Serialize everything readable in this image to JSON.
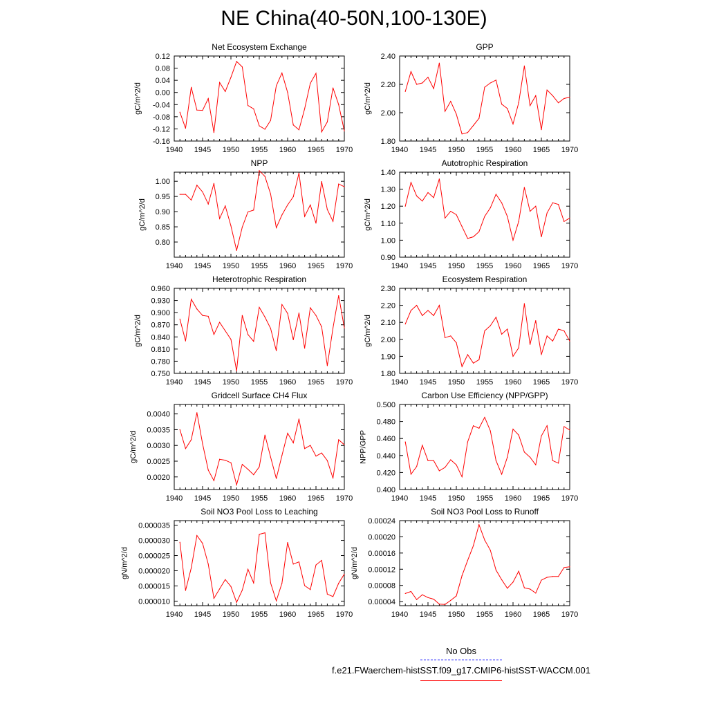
{
  "title": "NE China(40-50N,100-130E)",
  "legend": {
    "obs_label": "No Obs",
    "obs_color": "#0000ff",
    "model_label": "f.e21.FWaerchem-histSST.f09_g17.CMIP6-histSST-WACCM.001",
    "model_color": "#ff0000"
  },
  "chart_data": [
    {
      "type": "line",
      "title": "Net Ecosystem Exchange",
      "ylabel": "gC/m^2/d",
      "xlabel": "",
      "xlim": [
        1940,
        1970
      ],
      "ylim": [
        -0.16,
        0.12
      ],
      "xticks": [
        "1940",
        "1945",
        "1950",
        "1955",
        "1960",
        "1965",
        "1970"
      ],
      "yticks": [
        "-0.16",
        "-0.12",
        "-0.08",
        "-0.04",
        "0.00",
        "0.04",
        "0.08",
        "0.12"
      ],
      "x": [
        1941,
        1942,
        1943,
        1944,
        1945,
        1946,
        1947,
        1948,
        1949,
        1950,
        1951,
        1952,
        1953,
        1954,
        1955,
        1956,
        1957,
        1958,
        1959,
        1960,
        1961,
        1962,
        1963,
        1964,
        1965,
        1966,
        1967,
        1968,
        1969,
        1970
      ],
      "values": [
        -0.065,
        -0.118,
        0.017,
        -0.058,
        -0.059,
        -0.02,
        -0.132,
        0.033,
        0.003,
        0.05,
        0.102,
        0.084,
        -0.043,
        -0.054,
        -0.11,
        -0.121,
        -0.092,
        0.022,
        0.064,
        0.0,
        -0.107,
        -0.123,
        -0.054,
        0.03,
        0.063,
        -0.13,
        -0.097,
        0.015,
        -0.04,
        -0.127
      ]
    },
    {
      "type": "line",
      "title": "GPP",
      "ylabel": "gC/m^2/d",
      "xlabel": "",
      "xlim": [
        1940,
        1970
      ],
      "ylim": [
        1.8,
        2.4
      ],
      "xticks": [
        "1940",
        "1945",
        "1950",
        "1955",
        "1960",
        "1965",
        "1970"
      ],
      "yticks": [
        "1.80",
        "2.00",
        "2.20",
        "2.40"
      ],
      "x": [
        1941,
        1942,
        1943,
        1944,
        1945,
        1946,
        1947,
        1948,
        1949,
        1950,
        1951,
        1952,
        1953,
        1954,
        1955,
        1956,
        1957,
        1958,
        1959,
        1960,
        1961,
        1962,
        1963,
        1964,
        1965,
        1966,
        1967,
        1968,
        1969,
        1970
      ],
      "values": [
        2.15,
        2.29,
        2.2,
        2.21,
        2.25,
        2.17,
        2.35,
        2.01,
        2.08,
        1.99,
        1.85,
        1.86,
        1.91,
        1.96,
        2.18,
        2.21,
        2.23,
        2.06,
        2.03,
        1.92,
        2.07,
        2.33,
        2.05,
        2.12,
        1.88,
        2.16,
        2.12,
        2.07,
        2.1,
        2.11
      ]
    },
    {
      "type": "line",
      "title": "NPP",
      "ylabel": "gC/m^2/d",
      "xlabel": "",
      "xlim": [
        1940,
        1970
      ],
      "ylim": [
        0.75,
        1.03
      ],
      "xticks": [
        "1940",
        "1945",
        "1950",
        "1955",
        "1960",
        "1965",
        "1970"
      ],
      "yticks": [
        "0.80",
        "0.85",
        "0.90",
        "0.95",
        "1.00"
      ],
      "x": [
        1941,
        1942,
        1943,
        1944,
        1945,
        1946,
        1947,
        1948,
        1949,
        1950,
        1951,
        1952,
        1953,
        1954,
        1955,
        1956,
        1957,
        1958,
        1959,
        1960,
        1961,
        1962,
        1963,
        1964,
        1965,
        1966,
        1967,
        1968,
        1969,
        1970
      ],
      "values": [
        0.957,
        0.957,
        0.938,
        0.987,
        0.965,
        0.925,
        0.993,
        0.877,
        0.919,
        0.853,
        0.772,
        0.849,
        0.899,
        0.905,
        1.035,
        1.016,
        0.958,
        0.847,
        0.889,
        0.922,
        0.949,
        1.027,
        0.884,
        0.922,
        0.862,
        0.999,
        0.907,
        0.868,
        0.991,
        0.982
      ]
    },
    {
      "type": "line",
      "title": "Autotrophic Respiration",
      "ylabel": "gC/m^2/d",
      "xlabel": "",
      "xlim": [
        1940,
        1970
      ],
      "ylim": [
        0.9,
        1.4
      ],
      "xticks": [
        "1940",
        "1945",
        "1950",
        "1955",
        "1960",
        "1965",
        "1970"
      ],
      "yticks": [
        "0.90",
        "1.00",
        "1.10",
        "1.20",
        "1.30",
        "1.40"
      ],
      "x": [
        1941,
        1942,
        1943,
        1944,
        1945,
        1946,
        1947,
        1948,
        1949,
        1950,
        1951,
        1952,
        1953,
        1954,
        1955,
        1956,
        1957,
        1958,
        1959,
        1960,
        1961,
        1962,
        1963,
        1964,
        1965,
        1966,
        1967,
        1968,
        1969,
        1970
      ],
      "values": [
        1.2,
        1.34,
        1.26,
        1.23,
        1.28,
        1.25,
        1.36,
        1.13,
        1.17,
        1.15,
        1.08,
        1.01,
        1.02,
        1.05,
        1.14,
        1.19,
        1.27,
        1.22,
        1.14,
        1.0,
        1.11,
        1.31,
        1.17,
        1.2,
        1.02,
        1.16,
        1.22,
        1.21,
        1.11,
        1.13
      ]
    },
    {
      "type": "line",
      "title": "Heterotrophic Respiration",
      "ylabel": "gC/m^2/d",
      "xlabel": "",
      "xlim": [
        1940,
        1970
      ],
      "ylim": [
        0.75,
        0.96
      ],
      "xticks": [
        "1940",
        "1945",
        "1950",
        "1955",
        "1960",
        "1965",
        "1970"
      ],
      "yticks": [
        "0.750",
        "0.780",
        "0.810",
        "0.840",
        "0.870",
        "0.900",
        "0.930",
        "0.960"
      ],
      "x": [
        1941,
        1942,
        1943,
        1944,
        1945,
        1946,
        1947,
        1948,
        1949,
        1950,
        1951,
        1952,
        1953,
        1954,
        1955,
        1956,
        1957,
        1958,
        1959,
        1960,
        1961,
        1962,
        1963,
        1964,
        1965,
        1966,
        1967,
        1968,
        1969,
        1970
      ],
      "values": [
        0.884,
        0.83,
        0.933,
        0.909,
        0.893,
        0.891,
        0.846,
        0.876,
        0.855,
        0.834,
        0.756,
        0.893,
        0.846,
        0.829,
        0.913,
        0.889,
        0.861,
        0.806,
        0.92,
        0.898,
        0.833,
        0.899,
        0.812,
        0.912,
        0.893,
        0.865,
        0.769,
        0.862,
        0.942,
        0.862
      ]
    },
    {
      "type": "line",
      "title": "Ecosystem Respiration",
      "ylabel": "gC/m^2/d",
      "xlabel": "",
      "xlim": [
        1940,
        1970
      ],
      "ylim": [
        1.8,
        2.3
      ],
      "xticks": [
        "1940",
        "1945",
        "1950",
        "1955",
        "1960",
        "1965",
        "1970"
      ],
      "yticks": [
        "1.80",
        "1.90",
        "2.00",
        "2.10",
        "2.20",
        "2.30"
      ],
      "x": [
        1941,
        1942,
        1943,
        1944,
        1945,
        1946,
        1947,
        1948,
        1949,
        1950,
        1951,
        1952,
        1953,
        1954,
        1955,
        1956,
        1957,
        1958,
        1959,
        1960,
        1961,
        1962,
        1963,
        1964,
        1965,
        1966,
        1967,
        1968,
        1969,
        1970
      ],
      "values": [
        2.09,
        2.17,
        2.2,
        2.14,
        2.17,
        2.14,
        2.2,
        2.01,
        2.02,
        1.98,
        1.84,
        1.91,
        1.86,
        1.88,
        2.05,
        2.08,
        2.13,
        2.03,
        2.06,
        1.9,
        1.95,
        2.21,
        1.97,
        2.11,
        1.91,
        2.02,
        1.99,
        2.06,
        2.05,
        1.99
      ]
    },
    {
      "type": "line",
      "title": "Gridcell Surface CH4 Flux",
      "ylabel": "gC/m^2/d",
      "xlabel": "",
      "xlim": [
        1940,
        1970
      ],
      "ylim": [
        0.0016,
        0.0043
      ],
      "xticks": [
        "1940",
        "1945",
        "1950",
        "1955",
        "1960",
        "1965",
        "1970"
      ],
      "yticks": [
        "0.0020",
        "0.0025",
        "0.0030",
        "0.0035",
        "0.0040"
      ],
      "x": [
        1941,
        1942,
        1943,
        1944,
        1945,
        1946,
        1947,
        1948,
        1949,
        1950,
        1951,
        1952,
        1953,
        1954,
        1955,
        1956,
        1957,
        1958,
        1959,
        1960,
        1961,
        1962,
        1963,
        1964,
        1965,
        1966,
        1967,
        1968,
        1969,
        1970
      ],
      "values": [
        0.0035,
        0.0029,
        0.00318,
        0.00404,
        0.00305,
        0.00222,
        0.00188,
        0.00256,
        0.00253,
        0.00245,
        0.00175,
        0.0024,
        0.00224,
        0.00207,
        0.00232,
        0.00333,
        0.00263,
        0.00195,
        0.00268,
        0.00339,
        0.00308,
        0.00384,
        0.0029,
        0.003,
        0.00266,
        0.00276,
        0.00252,
        0.00196,
        0.00318,
        0.00302
      ]
    },
    {
      "type": "line",
      "title": "Carbon Use Efficiency (NPP/GPP)",
      "ylabel": "NPP/GPP",
      "xlabel": "",
      "xlim": [
        1940,
        1970
      ],
      "ylim": [
        0.4,
        0.5
      ],
      "xticks": [
        "1940",
        "1945",
        "1950",
        "1955",
        "1960",
        "1965",
        "1970"
      ],
      "yticks": [
        "0.400",
        "0.420",
        "0.440",
        "0.460",
        "0.480",
        "0.500"
      ],
      "x": [
        1941,
        1942,
        1943,
        1944,
        1945,
        1946,
        1947,
        1948,
        1949,
        1950,
        1951,
        1952,
        1953,
        1954,
        1955,
        1956,
        1957,
        1958,
        1959,
        1960,
        1961,
        1962,
        1963,
        1964,
        1965,
        1966,
        1967,
        1968,
        1969,
        1970
      ],
      "values": [
        0.456,
        0.418,
        0.427,
        0.452,
        0.434,
        0.434,
        0.422,
        0.426,
        0.435,
        0.429,
        0.415,
        0.456,
        0.475,
        0.472,
        0.485,
        0.469,
        0.434,
        0.418,
        0.438,
        0.471,
        0.464,
        0.444,
        0.438,
        0.429,
        0.463,
        0.475,
        0.434,
        0.431,
        0.474,
        0.47
      ]
    },
    {
      "type": "line",
      "title": "Soil NO3 Pool Loss to Leaching",
      "ylabel": "gN/m^2/d",
      "xlabel": "",
      "xlim": [
        1940,
        1970
      ],
      "ylim": [
        8.5e-06,
        3.65e-05
      ],
      "xticks": [
        "1940",
        "1945",
        "1950",
        "1955",
        "1960",
        "1965",
        "1970"
      ],
      "yticks": [
        "0.000010",
        "0.000015",
        "0.000020",
        "0.000025",
        "0.000030",
        "0.000035"
      ],
      "x": [
        1941,
        1942,
        1943,
        1944,
        1945,
        1946,
        1947,
        1948,
        1949,
        1950,
        1951,
        1952,
        1953,
        1954,
        1955,
        1956,
        1957,
        1958,
        1959,
        1960,
        1961,
        1962,
        1963,
        1964,
        1965,
        1966,
        1967,
        1968,
        1969,
        1970
      ],
      "values": [
        2.94e-05,
        1.35e-05,
        2.09e-05,
        3.16e-05,
        2.9e-05,
        2.22e-05,
        1.09e-05,
        1.4e-05,
        1.71e-05,
        1.48e-05,
        9.6e-06,
        1.36e-05,
        2.05e-05,
        1.6e-05,
        3.2e-05,
        3.25e-05,
        1.6e-05,
        1.01e-05,
        1.59e-05,
        2.93e-05,
        2.22e-05,
        2.29e-05,
        1.51e-05,
        1.38e-05,
        2.19e-05,
        2.34e-05,
        1.23e-05,
        1.15e-05,
        1.59e-05,
        1.89e-05
      ]
    },
    {
      "type": "line",
      "title": "Soil NO3 Pool Loss to Runoff",
      "ylabel": "gN/m^2/d",
      "xlabel": "",
      "xlim": [
        1940,
        1970
      ],
      "ylim": [
        3e-05,
        0.00024
      ],
      "xticks": [
        "1940",
        "1945",
        "1950",
        "1955",
        "1960",
        "1965",
        "1970"
      ],
      "yticks": [
        "0.00004",
        "0.00008",
        "0.00012",
        "0.00016",
        "0.00020",
        "0.00024"
      ],
      "x": [
        1941,
        1942,
        1943,
        1944,
        1945,
        1946,
        1947,
        1948,
        1949,
        1950,
        1951,
        1952,
        1953,
        1954,
        1955,
        1956,
        1957,
        1958,
        1959,
        1960,
        1961,
        1962,
        1963,
        1964,
        1965,
        1966,
        1967,
        1968,
        1969,
        1970
      ],
      "values": [
        6e-05,
        6.5e-05,
        4.5e-05,
        5.7e-05,
        5e-05,
        4.6e-05,
        3.4e-05,
        3.3e-05,
        4.3e-05,
        5.4e-05,
        0.000104,
        0.000142,
        0.000178,
        0.00023,
        0.000192,
        0.000167,
        0.000118,
        9.4e-05,
        7.3e-05,
        8.8e-05,
        0.000115,
        7.4e-05,
        7.1e-05,
        6.1e-05,
        9.3e-05,
        0.0001,
        0.000102,
        0.000102,
        0.000124,
        0.000126
      ]
    }
  ]
}
